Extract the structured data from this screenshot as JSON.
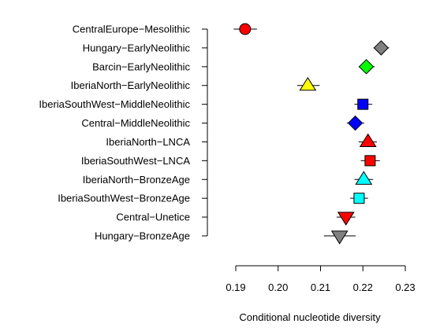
{
  "chart_data": {
    "type": "scatter",
    "xlabel": "Conditional nucleotide diversity",
    "xlim": [
      0.19,
      0.23
    ],
    "xticks": [
      0.19,
      0.2,
      0.21,
      0.22,
      0.23
    ],
    "xtick_labels": [
      "0.19",
      "0.20",
      "0.21",
      "0.22",
      "0.23"
    ],
    "grid": false,
    "points": [
      {
        "label": "CentralEurope−Mesolithic",
        "value": 0.1922,
        "ci": [
          0.1895,
          0.195
        ],
        "marker": "circle",
        "color": "#ff0000"
      },
      {
        "label": "Hungary−EarlyNeolithic",
        "value": 0.2243,
        "ci": [
          0.2225,
          0.2262
        ],
        "marker": "diamond",
        "color": "#808080"
      },
      {
        "label": "Barcin−EarlyNeolithic",
        "value": 0.2208,
        "ci": [
          0.219,
          0.2228
        ],
        "marker": "diamond",
        "color": "#00ff00"
      },
      {
        "label": "IberiaNorth−EarlyNeolithic",
        "value": 0.207,
        "ci": [
          0.2045,
          0.2098
        ],
        "marker": "triangle-up",
        "color": "#ffff00"
      },
      {
        "label": "IberiaSouthWest−MiddleNeolithic",
        "value": 0.22,
        "ci": [
          0.218,
          0.2222
        ],
        "marker": "square",
        "color": "#0000ff"
      },
      {
        "label": "Central−MiddleNeolithic",
        "value": 0.2182,
        "ci": [
          0.2162,
          0.2203
        ],
        "marker": "diamond",
        "color": "#0000ff"
      },
      {
        "label": "IberiaNorth−LNCA",
        "value": 0.2212,
        "ci": [
          0.219,
          0.2233
        ],
        "marker": "triangle-up",
        "color": "#ff0000"
      },
      {
        "label": "IberiaSouthWest−LNCA",
        "value": 0.2217,
        "ci": [
          0.2195,
          0.224
        ],
        "marker": "square",
        "color": "#ff0000"
      },
      {
        "label": "IberiaNorth−BronzeAge",
        "value": 0.2202,
        "ci": [
          0.218,
          0.2224
        ],
        "marker": "triangle-up",
        "color": "#00ffff"
      },
      {
        "label": "IberiaSouthWest−BronzeAge",
        "value": 0.2191,
        "ci": [
          0.217,
          0.2212
        ],
        "marker": "square",
        "color": "#00ffff"
      },
      {
        "label": "Central−Unetice",
        "value": 0.216,
        "ci": [
          0.2138,
          0.2182
        ],
        "marker": "triangle-down",
        "color": "#ff0000"
      },
      {
        "label": "Hungary−BronzeAge",
        "value": 0.2145,
        "ci": [
          0.2108,
          0.2183
        ],
        "marker": "triangle-down",
        "color": "#808080"
      }
    ]
  }
}
